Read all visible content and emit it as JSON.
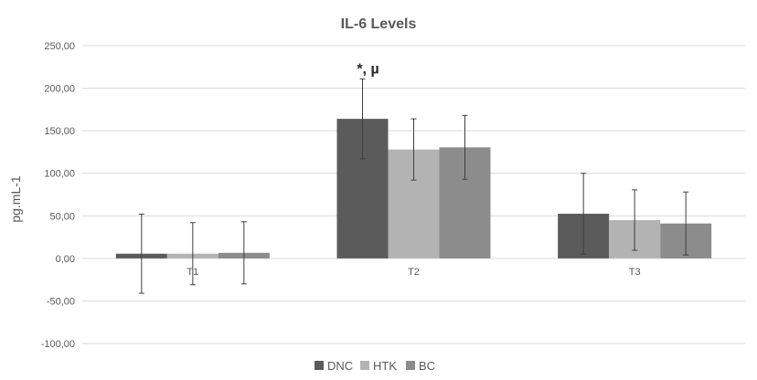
{
  "chart_data": {
    "type": "bar",
    "title": "IL-6 Levels",
    "xlabel": "",
    "ylabel": "pg.mL-1",
    "categories": [
      "T1",
      "T2",
      "T3"
    ],
    "series": [
      {
        "name": "DNC",
        "color": "#5b5b5b",
        "values": [
          5.5,
          164,
          52.5
        ],
        "error": [
          46.5,
          47,
          47.5
        ]
      },
      {
        "name": "HTK",
        "color": "#b3b3b3",
        "values": [
          5.5,
          128,
          45
        ],
        "error": [
          36.5,
          36,
          35.5
        ]
      },
      {
        "name": "BC",
        "color": "#8c8c8c",
        "values": [
          6.5,
          130.5,
          41
        ],
        "error": [
          36.5,
          37.5,
          37
        ]
      }
    ],
    "ylim": [
      -100,
      250
    ],
    "yticks": [
      -100,
      -50,
      0,
      50,
      100,
      150,
      200,
      250
    ],
    "ytick_labels": [
      "-100,00",
      "-50,00",
      "0,00",
      "50,00",
      "100,00",
      "150,00",
      "200,00",
      "250,00"
    ],
    "grid": true,
    "legend": "bottom",
    "annotations": [
      {
        "category": "T2",
        "series": "DNC",
        "text": "*, µ"
      }
    ]
  }
}
